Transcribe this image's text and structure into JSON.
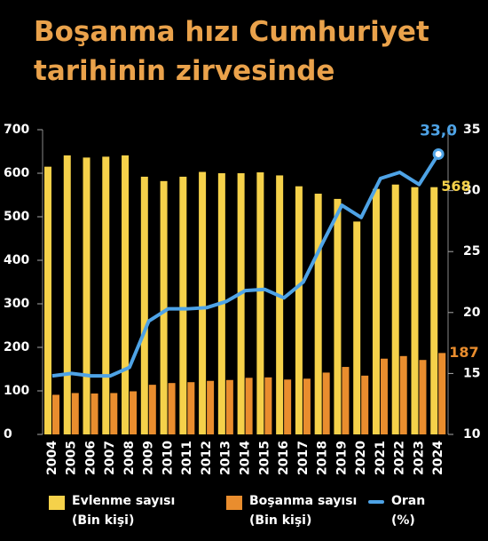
{
  "chart_data": {
    "type": "bar_line",
    "title": "Boşanma hızı Cumhuriyet\ntarihinin zirvesinde",
    "categories": [
      "2004",
      "2005",
      "2006",
      "2007",
      "2008",
      "2009",
      "2010",
      "2011",
      "2012",
      "2013",
      "2014",
      "2015",
      "2016",
      "2017",
      "2018",
      "2019",
      "2020",
      "2021",
      "2022",
      "2023",
      "2024"
    ],
    "series": [
      {
        "name": "Evlenme sayısı\n(Bin kişi)",
        "color": "#f5d14a",
        "kind": "bar",
        "values": [
          615,
          641,
          636,
          638,
          641,
          592,
          582,
          592,
          603,
          600,
          600,
          602,
          595,
          570,
          553,
          541,
          489,
          564,
          574,
          568,
          568
        ]
      },
      {
        "name": "Boşanma sayısı\n(Bin kişi)",
        "color": "#e98d2e",
        "kind": "bar",
        "values": [
          91,
          95,
          94,
          95,
          99,
          114,
          118,
          120,
          123,
          125,
          130,
          131,
          126,
          128,
          142,
          155,
          135,
          174,
          180,
          171,
          187
        ]
      },
      {
        "name": "Oran\n(%)",
        "color": "#4ea3e6",
        "kind": "line",
        "axis": "y2",
        "values": [
          14.8,
          15.0,
          14.8,
          14.8,
          15.5,
          19.3,
          20.3,
          20.3,
          20.4,
          20.9,
          21.8,
          21.9,
          21.2,
          22.5,
          25.7,
          28.8,
          27.8,
          31.0,
          31.5,
          30.5,
          33.0
        ],
        "value_labels": [
          null,
          null,
          null,
          null,
          null,
          null,
          null,
          null,
          null,
          null,
          null,
          null,
          null,
          null,
          null,
          null,
          null,
          null,
          null,
          null,
          "33,0"
        ]
      }
    ],
    "ylim": [
      0,
      700
    ],
    "yticks": [
      0,
      100,
      200,
      300,
      400,
      500,
      600,
      700
    ],
    "y2lim": [
      10,
      35
    ],
    "y2ticks": [
      10,
      15,
      20,
      25,
      30,
      35
    ]
  }
}
